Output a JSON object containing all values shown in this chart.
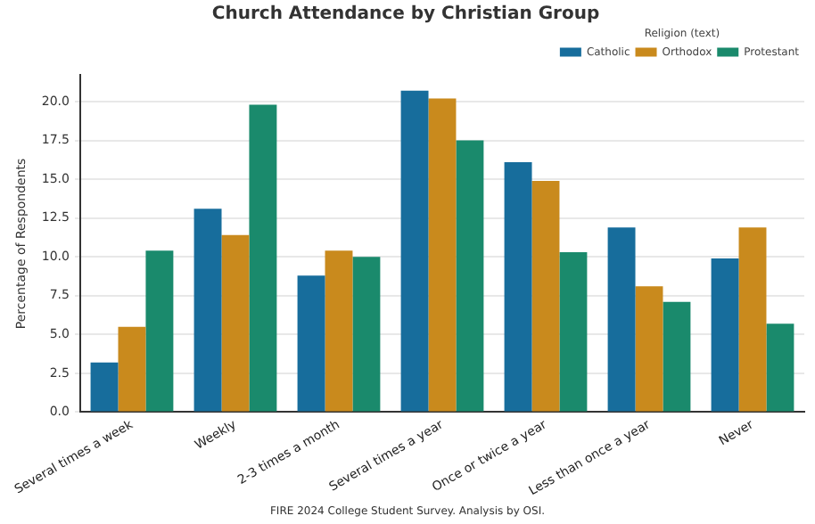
{
  "chart_data": {
    "type": "bar",
    "title": "Church Attendance by Christian Group",
    "ylabel": "Percentage of Respondents",
    "legend_title": "Religion (text)",
    "categories": [
      "Several times a week",
      "Weekly",
      "2-3 times a month",
      "Several times a year",
      "Once or twice a year",
      "Less than once a year",
      "Never"
    ],
    "series": [
      {
        "name": "Catholic",
        "color": "#176d9c",
        "values": [
          3.2,
          13.1,
          8.8,
          20.7,
          16.1,
          11.9,
          9.9
        ]
      },
      {
        "name": "Orthodox",
        "color": "#c98a1d",
        "values": [
          5.5,
          11.4,
          10.4,
          20.2,
          14.9,
          8.1,
          11.9
        ]
      },
      {
        "name": "Protestant",
        "color": "#1a8a6c",
        "values": [
          10.4,
          19.8,
          10.0,
          17.5,
          10.3,
          7.1,
          5.7
        ]
      }
    ],
    "ylim": [
      0,
      21.7
    ],
    "yticks": [
      {
        "value": 0,
        "label": "0.0"
      },
      {
        "value": 2.5,
        "label": "2.5"
      },
      {
        "value": 5,
        "label": "5.0"
      },
      {
        "value": 7.5,
        "label": "7.5"
      },
      {
        "value": 10,
        "label": "10.0"
      },
      {
        "value": 12.5,
        "label": "12.5"
      },
      {
        "value": 15,
        "label": "15.0"
      },
      {
        "value": 17.5,
        "label": "17.5"
      },
      {
        "value": 20,
        "label": "20.0"
      }
    ],
    "grid": "y",
    "legend": "top right",
    "annotations": [
      "FIRE 2024 College Student Survey. Analysis by OSI."
    ]
  }
}
